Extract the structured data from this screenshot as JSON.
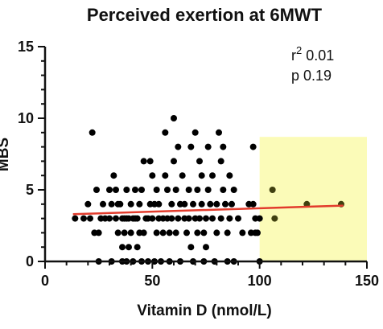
{
  "chart_data": {
    "type": "scatter",
    "title": "Perceived exertion at 6MWT",
    "xlabel": "Vitamin D (nmol/L)",
    "ylabel": "MBS",
    "xlim": [
      0,
      150
    ],
    "ylim": [
      0,
      15
    ],
    "x_ticks": [
      0,
      50,
      100,
      150
    ],
    "y_ticks": [
      0,
      5,
      10,
      15
    ],
    "grid": false,
    "annotations": {
      "r2_label": "r",
      "r2_value": "0.01",
      "p_text": "p 0.19"
    },
    "highlight_region": {
      "x": [
        100,
        150
      ],
      "y": [
        0,
        8.7
      ],
      "color": "#fbfbb8"
    },
    "colors": {
      "points": "#000000",
      "points_highlighted": "#404010",
      "trend": "#e23b2c"
    },
    "trendline": {
      "x": [
        13,
        139
      ],
      "y": [
        3.3,
        3.9
      ]
    },
    "points": [
      [
        14,
        3
      ],
      [
        18,
        3
      ],
      [
        20,
        4
      ],
      [
        21,
        3
      ],
      [
        22,
        9
      ],
      [
        23,
        2
      ],
      [
        24,
        5
      ],
      [
        25,
        2
      ],
      [
        25,
        0
      ],
      [
        26,
        3
      ],
      [
        27,
        4
      ],
      [
        28,
        3
      ],
      [
        30,
        3
      ],
      [
        30,
        5
      ],
      [
        31,
        0
      ],
      [
        31,
        4
      ],
      [
        32,
        6
      ],
      [
        33,
        3
      ],
      [
        33,
        5
      ],
      [
        34,
        2
      ],
      [
        34,
        4
      ],
      [
        35,
        4
      ],
      [
        36,
        3
      ],
      [
        36,
        1
      ],
      [
        36,
        0
      ],
      [
        37,
        2
      ],
      [
        37,
        3
      ],
      [
        38,
        3
      ],
      [
        38,
        5
      ],
      [
        38,
        0
      ],
      [
        39,
        1
      ],
      [
        39,
        3
      ],
      [
        40,
        2
      ],
      [
        40,
        4
      ],
      [
        41,
        3
      ],
      [
        41,
        0
      ],
      [
        42,
        5
      ],
      [
        42,
        3
      ],
      [
        43,
        3
      ],
      [
        43,
        1
      ],
      [
        44,
        2
      ],
      [
        44,
        4
      ],
      [
        45,
        0
      ],
      [
        45,
        5
      ],
      [
        46,
        2
      ],
      [
        46,
        7
      ],
      [
        47,
        3
      ],
      [
        48,
        3
      ],
      [
        48,
        0
      ],
      [
        49,
        4
      ],
      [
        49,
        7
      ],
      [
        50,
        3
      ],
      [
        50,
        6
      ],
      [
        51,
        0
      ],
      [
        51,
        4
      ],
      [
        52,
        2
      ],
      [
        52,
        5
      ],
      [
        53,
        3
      ],
      [
        53,
        4
      ],
      [
        54,
        0
      ],
      [
        55,
        3
      ],
      [
        55,
        2
      ],
      [
        56,
        9
      ],
      [
        56,
        6
      ],
      [
        57,
        3
      ],
      [
        57,
        5
      ],
      [
        58,
        2
      ],
      [
        58,
        0
      ],
      [
        59,
        3
      ],
      [
        59,
        4
      ],
      [
        60,
        7
      ],
      [
        60,
        10
      ],
      [
        61,
        2
      ],
      [
        61,
        5
      ],
      [
        62,
        3
      ],
      [
        62,
        8
      ],
      [
        63,
        4
      ],
      [
        63,
        0
      ],
      [
        64,
        6
      ],
      [
        65,
        3
      ],
      [
        65,
        4
      ],
      [
        66,
        2
      ],
      [
        67,
        3
      ],
      [
        67,
        5
      ],
      [
        68,
        8
      ],
      [
        68,
        1
      ],
      [
        69,
        4
      ],
      [
        69,
        0
      ],
      [
        70,
        9
      ],
      [
        70,
        3
      ],
      [
        71,
        5
      ],
      [
        71,
        2
      ],
      [
        72,
        3
      ],
      [
        72,
        7
      ],
      [
        73,
        4
      ],
      [
        73,
        6
      ],
      [
        74,
        2
      ],
      [
        74,
        0
      ],
      [
        75,
        3
      ],
      [
        75,
        1
      ],
      [
        76,
        5
      ],
      [
        76,
        8
      ],
      [
        77,
        4
      ],
      [
        78,
        6
      ],
      [
        78,
        3
      ],
      [
        79,
        0
      ],
      [
        80,
        2
      ],
      [
        80,
        4
      ],
      [
        81,
        9
      ],
      [
        82,
        7
      ],
      [
        82,
        3
      ],
      [
        83,
        5
      ],
      [
        83,
        8
      ],
      [
        84,
        4
      ],
      [
        85,
        2
      ],
      [
        85,
        0
      ],
      [
        86,
        6
      ],
      [
        86,
        3
      ],
      [
        87,
        4
      ],
      [
        88,
        0
      ],
      [
        88,
        5
      ],
      [
        90,
        3
      ],
      [
        92,
        2
      ],
      [
        95,
        4
      ],
      [
        96,
        2
      ],
      [
        97,
        4
      ],
      [
        97,
        8
      ],
      [
        98,
        2
      ],
      [
        98,
        3
      ],
      [
        99,
        2
      ],
      [
        100,
        3
      ],
      [
        100,
        0
      ],
      [
        106,
        5
      ],
      [
        107,
        3
      ],
      [
        122,
        4
      ],
      [
        138,
        4
      ]
    ]
  }
}
